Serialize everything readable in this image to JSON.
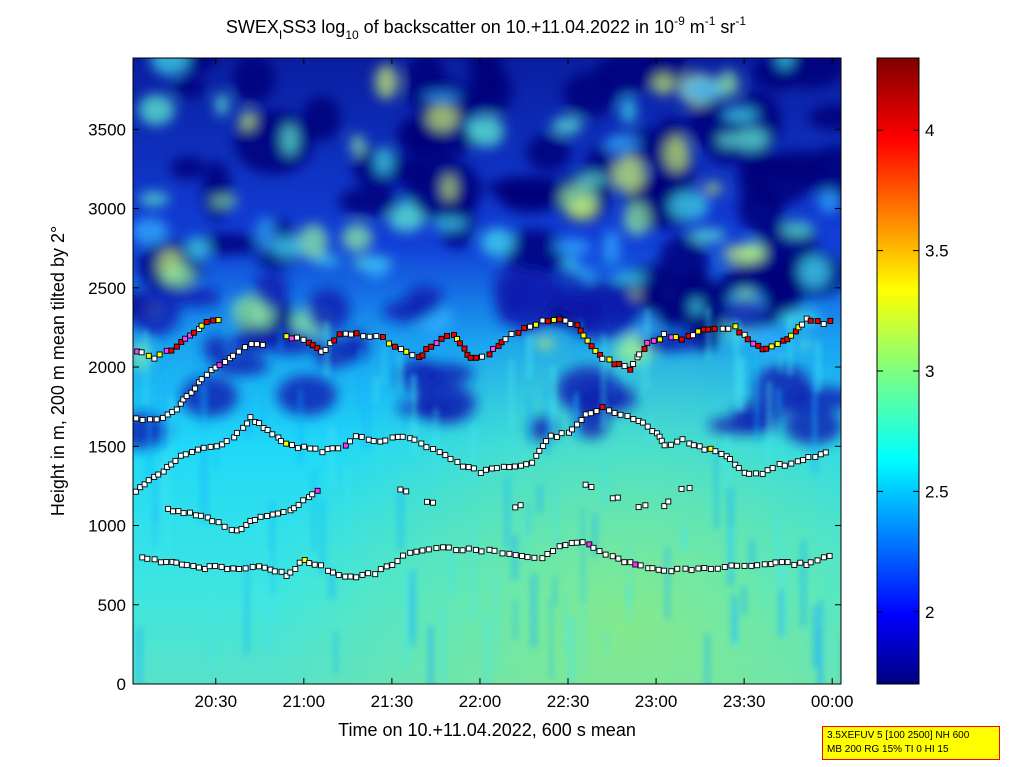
{
  "chart_data": {
    "type": "heatmap",
    "title": {
      "prefix": "SWEX",
      "sub1": "I",
      "part2": "SS3 log",
      "sub2": "10",
      "part3": " of backscatter on 10.+11.04.2022 in 10",
      "sup1": "-9",
      "part4": " m",
      "sup2": "-1",
      "part5": " sr",
      "sup3": "-1"
    },
    "xlabel": "Time on 10.+11.04.2022, 600 s mean",
    "ylabel": "Height in m, 200 m mean tilted by 2°",
    "x_ticks": [
      "20:30",
      "21:00",
      "21:30",
      "22:00",
      "22:30",
      "23:00",
      "23:30",
      "00:00"
    ],
    "x_tick_hours": [
      20.5,
      21.0,
      21.5,
      22.0,
      22.5,
      23.0,
      23.5,
      24.0
    ],
    "xlim_hours": [
      20.03,
      24.05
    ],
    "y_ticks": [
      "0",
      "500",
      "1000",
      "1500",
      "2000",
      "2500",
      "3000",
      "3500"
    ],
    "y_tick_values": [
      0,
      500,
      1000,
      1500,
      2000,
      2500,
      3000,
      3500
    ],
    "ylim": [
      0,
      3950
    ],
    "colorbar": {
      "ticks": [
        "2",
        "2.5",
        "3",
        "3.5",
        "4"
      ],
      "tick_values": [
        2,
        2.5,
        3,
        3.5,
        4
      ],
      "range": [
        1.7,
        4.3
      ],
      "colormap": "jet"
    },
    "layers": [
      {
        "name": "lowest layer",
        "points": [
          [
            20.08,
            790
          ],
          [
            20.15,
            780
          ],
          [
            20.25,
            770
          ],
          [
            20.4,
            730
          ],
          [
            20.5,
            740
          ],
          [
            20.6,
            720
          ],
          [
            20.75,
            750
          ],
          [
            20.9,
            690
          ],
          [
            21.0,
            780
          ],
          [
            21.1,
            740
          ],
          [
            21.2,
            680
          ],
          [
            21.3,
            680
          ],
          [
            21.4,
            700
          ],
          [
            21.5,
            760
          ],
          [
            21.6,
            830
          ],
          [
            21.75,
            860
          ],
          [
            21.9,
            850
          ],
          [
            22.05,
            840
          ],
          [
            22.2,
            820
          ],
          [
            22.35,
            800
          ],
          [
            22.45,
            870
          ],
          [
            22.55,
            900
          ],
          [
            22.65,
            860
          ],
          [
            22.75,
            800
          ],
          [
            22.85,
            760
          ],
          [
            22.95,
            740
          ],
          [
            23.05,
            720
          ],
          [
            23.2,
            720
          ],
          [
            23.35,
            730
          ],
          [
            23.5,
            750
          ],
          [
            23.65,
            760
          ],
          [
            23.75,
            760
          ],
          [
            23.85,
            760
          ],
          [
            23.95,
            790
          ],
          [
            24.03,
            820
          ]
        ]
      },
      {
        "name": "layer 2",
        "points": [
          [
            20.23,
            1100
          ],
          [
            20.35,
            1080
          ],
          [
            20.45,
            1050
          ],
          [
            20.55,
            1000
          ],
          [
            20.62,
            960
          ],
          [
            20.72,
            1040
          ],
          [
            20.82,
            1070
          ],
          [
            20.92,
            1100
          ],
          [
            21.0,
            1150
          ],
          [
            21.1,
            1250
          ]
        ]
      },
      {
        "name": "layer 3",
        "points": [
          [
            20.05,
            1220
          ],
          [
            20.15,
            1300
          ],
          [
            20.25,
            1390
          ],
          [
            20.3,
            1440
          ],
          [
            20.4,
            1480
          ],
          [
            20.5,
            1500
          ],
          [
            20.6,
            1560
          ],
          [
            20.7,
            1680
          ],
          [
            20.8,
            1600
          ],
          [
            20.9,
            1510
          ],
          [
            21.0,
            1490
          ],
          [
            21.1,
            1470
          ],
          [
            21.2,
            1490
          ],
          [
            21.3,
            1560
          ],
          [
            21.4,
            1530
          ],
          [
            21.5,
            1550
          ],
          [
            21.6,
            1560
          ],
          [
            21.7,
            1500
          ],
          [
            21.8,
            1450
          ],
          [
            21.9,
            1380
          ],
          [
            22.0,
            1340
          ],
          [
            22.1,
            1360
          ],
          [
            22.2,
            1380
          ],
          [
            22.3,
            1400
          ],
          [
            22.4,
            1560
          ],
          [
            22.5,
            1580
          ],
          [
            22.6,
            1700
          ],
          [
            22.7,
            1740
          ],
          [
            22.8,
            1700
          ],
          [
            22.9,
            1660
          ],
          [
            23.0,
            1580
          ],
          [
            23.05,
            1500
          ],
          [
            23.15,
            1540
          ],
          [
            23.25,
            1500
          ],
          [
            23.4,
            1440
          ],
          [
            23.5,
            1340
          ],
          [
            23.6,
            1320
          ],
          [
            23.7,
            1380
          ],
          [
            23.8,
            1400
          ],
          [
            23.9,
            1440
          ],
          [
            24.0,
            1480
          ]
        ]
      },
      {
        "name": "layer 4",
        "points": [
          [
            20.05,
            1670
          ],
          [
            20.2,
            1680
          ],
          [
            20.3,
            1760
          ],
          [
            20.4,
            1900
          ],
          [
            20.5,
            2000
          ],
          [
            20.6,
            2080
          ],
          [
            20.7,
            2140
          ],
          [
            20.8,
            2150
          ]
        ]
      },
      {
        "name": "layer 5",
        "points": [
          [
            20.05,
            2100
          ],
          [
            20.15,
            2060
          ],
          [
            20.25,
            2110
          ],
          [
            20.35,
            2200
          ],
          [
            20.45,
            2290
          ],
          [
            20.55,
            2310
          ]
        ]
      },
      {
        "name": "upper layer",
        "points": [
          [
            20.9,
            2190
          ],
          [
            21.0,
            2170
          ],
          [
            21.1,
            2090
          ],
          [
            21.2,
            2200
          ],
          [
            21.3,
            2210
          ],
          [
            21.45,
            2180
          ],
          [
            21.55,
            2110
          ],
          [
            21.65,
            2060
          ],
          [
            21.75,
            2150
          ],
          [
            21.85,
            2210
          ],
          [
            21.95,
            2050
          ],
          [
            22.05,
            2080
          ],
          [
            22.15,
            2180
          ],
          [
            22.25,
            2240
          ],
          [
            22.35,
            2290
          ],
          [
            22.45,
            2300
          ],
          [
            22.55,
            2260
          ],
          [
            22.7,
            2050
          ],
          [
            22.85,
            1990
          ],
          [
            22.95,
            2150
          ],
          [
            23.05,
            2200
          ],
          [
            23.15,
            2180
          ],
          [
            23.3,
            2240
          ],
          [
            23.45,
            2250
          ],
          [
            23.6,
            2110
          ],
          [
            23.75,
            2170
          ],
          [
            23.85,
            2300
          ],
          [
            23.95,
            2280
          ],
          [
            24.03,
            2310
          ]
        ]
      },
      {
        "name": "scattered layer",
        "points": [
          [
            21.55,
            1230
          ],
          [
            21.7,
            1150
          ],
          [
            22.2,
            1110
          ],
          [
            22.6,
            1250
          ],
          [
            22.75,
            1180
          ],
          [
            22.9,
            1120
          ],
          [
            23.05,
            1130
          ],
          [
            23.15,
            1240
          ],
          [
            23.3,
            1210
          ]
        ]
      }
    ]
  },
  "info_box": {
    "line1": "3.5XEFUV 5 [100 2500] NH 600",
    "line2": "MB 200 RG 15% TI 0 HI 15"
  }
}
